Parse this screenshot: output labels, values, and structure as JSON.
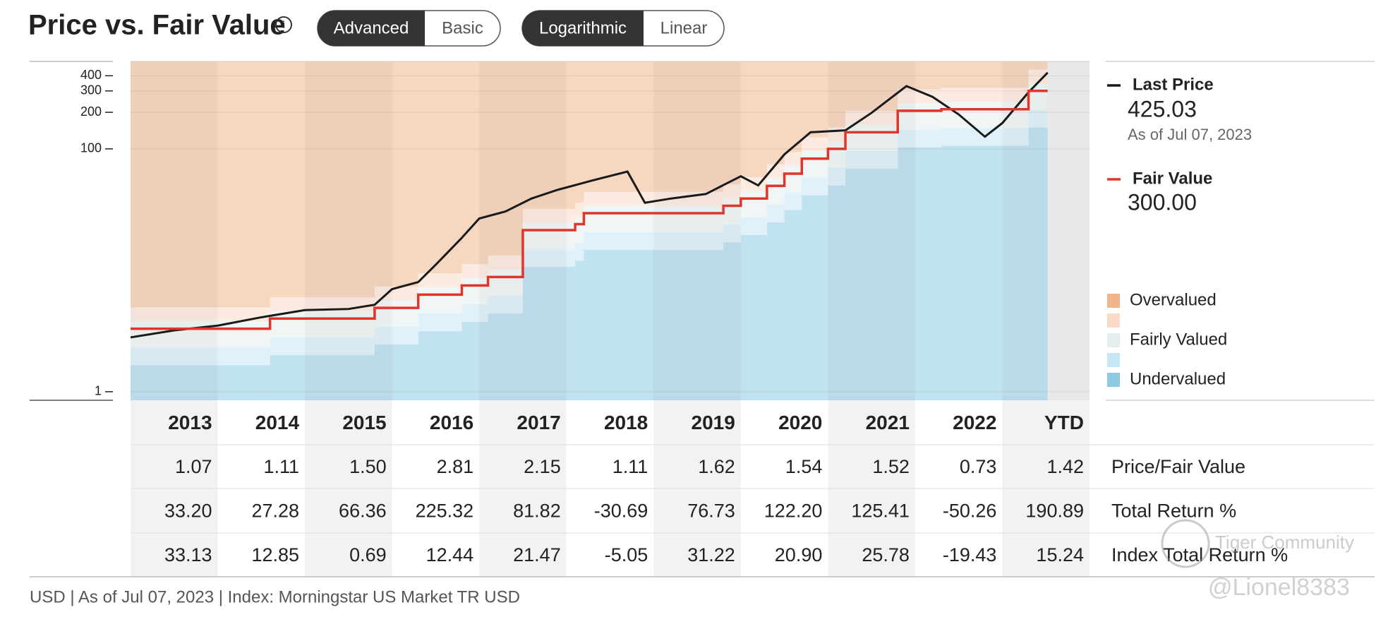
{
  "chart_data": {
    "type": "line",
    "title": "Price vs. Fair Value",
    "yscale": "log",
    "ylim": [
      0.85,
      525
    ],
    "yticks": [
      1,
      100,
      200,
      300,
      400
    ],
    "xlim": [
      2013,
      2024
    ],
    "grid": true,
    "series": [
      {
        "name": "Last Price",
        "color": "#1a1a1a",
        "x": [
          2013.0,
          2013.5,
          2014.0,
          2014.5,
          2015.0,
          2015.5,
          2015.8,
          2016.0,
          2016.3,
          2016.5,
          2016.8,
          2017.0,
          2017.3,
          2017.6,
          2017.9,
          2018.3,
          2018.7,
          2018.9,
          2019.2,
          2019.6,
          2020.0,
          2020.2,
          2020.5,
          2020.8,
          2021.2,
          2021.5,
          2021.9,
          2022.2,
          2022.5,
          2022.8,
          2023.0,
          2023.3,
          2023.52
        ],
        "values": [
          2.8,
          3.2,
          3.5,
          4.1,
          4.7,
          4.8,
          5.2,
          7.0,
          8.0,
          11.1,
          18.5,
          26.7,
          30.5,
          39,
          46,
          55,
          65,
          36,
          39,
          42.5,
          59.5,
          50,
          90,
          137,
          142,
          198,
          329,
          268,
          192,
          126,
          163,
          292,
          425.03
        ]
      },
      {
        "name": "Fair Value",
        "color": "#e0352b",
        "step": true,
        "x": [
          2013.0,
          2014.6,
          2015.8,
          2016.3,
          2016.8,
          2017.1,
          2017.5,
          2018.1,
          2018.2,
          2019.8,
          2020.0,
          2020.3,
          2020.5,
          2020.7,
          2021.0,
          2021.2,
          2021.8,
          2022.3,
          2023.3
        ],
        "values": [
          3.3,
          4.0,
          4.9,
          6.3,
          7.5,
          8.8,
          21.4,
          24,
          29.5,
          34,
          39,
          49.6,
          62.5,
          83,
          100,
          137,
          206,
          212,
          300
        ]
      }
    ],
    "legend": [
      {
        "value": "425.03",
        "note": "As of Jul 07, 2023"
      },
      {
        "value": "300.00"
      }
    ],
    "valuation_legend": [
      {
        "label": "Overvalued",
        "color": "#efb68c"
      },
      {
        "color": "#f8dac6"
      },
      {
        "label": "Fairly Valued",
        "color": "#e3eeee"
      },
      {
        "color": "#c6e6f4"
      },
      {
        "label": "Undervalued",
        "color": "#8ccbe5"
      }
    ]
  },
  "controls": [
    [
      "Advanced",
      "Basic"
    ],
    [
      "Logarithmic",
      "Linear"
    ]
  ],
  "table": {
    "columns": [
      "2013",
      "2014",
      "2015",
      "2016",
      "2017",
      "2018",
      "2019",
      "2020",
      "2021",
      "2022",
      "YTD"
    ],
    "rows": [
      {
        "label": "Price/Fair Value",
        "cells": [
          "1.07",
          "1.11",
          "1.50",
          "2.81",
          "2.15",
          "1.11",
          "1.62",
          "1.54",
          "1.52",
          "0.73",
          "1.42"
        ]
      },
      {
        "label": "Total Return %",
        "cells": [
          "33.20",
          "27.28",
          "66.36",
          "225.32",
          "81.82",
          "-30.69",
          "76.73",
          "122.20",
          "125.41",
          "-50.26",
          "190.89"
        ]
      },
      {
        "label": "Index Total Return %",
        "cells": [
          "33.13",
          "12.85",
          "0.69",
          "12.44",
          "21.47",
          "-5.05",
          "31.22",
          "20.90",
          "25.78",
          "-19.43",
          "15.24"
        ]
      }
    ]
  },
  "footer": "USD | As of Jul 07, 2023 | Index: Morningstar US Market TR USD",
  "watermark": [
    "Tiger Community",
    "@Lionel8383"
  ]
}
